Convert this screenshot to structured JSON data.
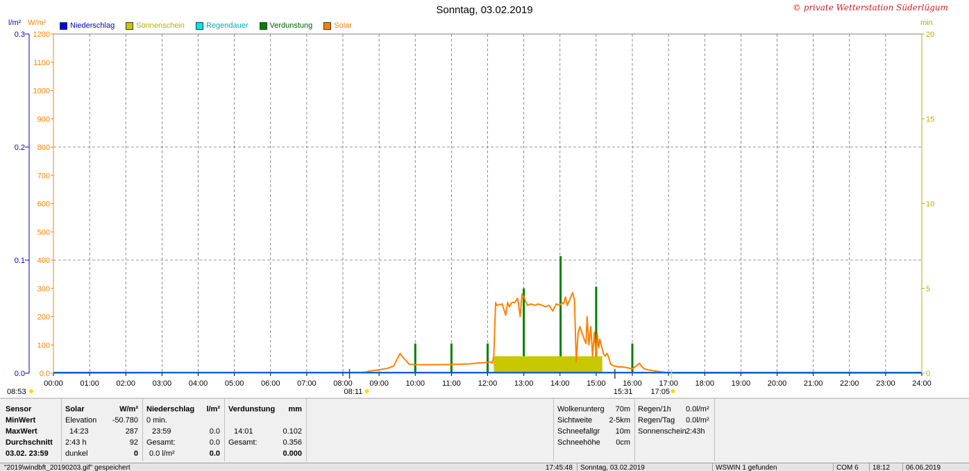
{
  "title": "Sonntag, 03.02.2019",
  "copyright": "© private Wetterstation Süderlügum",
  "units": {
    "left_rain": "l/m²",
    "left_solar": "W/m²",
    "right": "min"
  },
  "legend": [
    {
      "label": "Niederschlag",
      "color": "#0000e6",
      "text_color": "#0000c0"
    },
    {
      "label": "Sonnenschein",
      "color": "#c8c800",
      "text_color": "#b0b000"
    },
    {
      "label": "Regendauer",
      "color": "#00e6e6",
      "text_color": "#00b0b0"
    },
    {
      "label": "Verdunstung",
      "color": "#008000",
      "text_color": "#006000"
    },
    {
      "label": "Solar",
      "color": "#ff8000",
      "text_color": "#ff8000"
    }
  ],
  "chart_data": {
    "type": "line",
    "title": "Sonntag, 03.02.2019",
    "x_ticks": [
      "00:00",
      "01:00",
      "02:00",
      "03:00",
      "04:00",
      "05:00",
      "06:00",
      "07:00",
      "08:00",
      "09:00",
      "10:00",
      "11:00",
      "12:00",
      "13:00",
      "14:00",
      "15:00",
      "16:00",
      "17:00",
      "18:00",
      "19:00",
      "20:00",
      "21:00",
      "22:00",
      "23:00",
      "24:00"
    ],
    "axes": {
      "rain": {
        "unit": "l/m²",
        "range": [
          0,
          0.3
        ],
        "ticks": [
          "0.0",
          "0.1",
          "0.2",
          "0.3"
        ]
      },
      "solar": {
        "unit": "W/m²",
        "range": [
          0,
          1200
        ],
        "ticks": [
          "0.0",
          "100",
          "200",
          "300",
          "400",
          "500",
          "600",
          "700",
          "800",
          "900",
          "1000",
          "1100",
          "1200"
        ]
      },
      "minutes": {
        "unit": "min",
        "range": [
          0,
          20
        ],
        "ticks": [
          "0",
          "5",
          "10",
          "15",
          "20"
        ]
      }
    },
    "grid": true,
    "legend_position": "top-left",
    "series": [
      {
        "name": "Solar",
        "axis": "solar",
        "color": "#ff8000",
        "x_hours": [
          0,
          8.6,
          8.75,
          9.0,
          9.25,
          9.4,
          9.5,
          9.58,
          9.67,
          9.83,
          10.0,
          10.5,
          11.0,
          11.5,
          11.75,
          12.0,
          12.08,
          12.13,
          12.17,
          12.22,
          12.25,
          12.4,
          12.5,
          12.55,
          12.6,
          12.67,
          12.75,
          12.83,
          12.9,
          12.95,
          13.0,
          13.05,
          13.1,
          13.2,
          13.3,
          13.4,
          13.5,
          13.6,
          13.7,
          13.8,
          13.9,
          14.0,
          14.05,
          14.1,
          14.15,
          14.2,
          14.25,
          14.3,
          14.35,
          14.4,
          14.45,
          14.5,
          14.55,
          14.6,
          14.67,
          14.72,
          14.75,
          14.8,
          14.85,
          14.9,
          14.95,
          15.0,
          15.03,
          15.07,
          15.1,
          15.15,
          15.2,
          15.25,
          15.3,
          15.35,
          15.4,
          15.45,
          15.5,
          15.55,
          15.6,
          15.67,
          15.75,
          15.83,
          16.0,
          16.1,
          16.2,
          16.25,
          16.33,
          16.5,
          16.67,
          16.83,
          17.0,
          17.08,
          24
        ],
        "y": [
          0,
          3,
          8,
          12,
          18,
          25,
          50,
          70,
          55,
          32,
          30,
          30,
          31,
          33,
          36,
          38,
          40,
          35,
          60,
          250,
          240,
          245,
          205,
          250,
          235,
          250,
          250,
          265,
          200,
          280,
          270,
          255,
          240,
          245,
          240,
          245,
          240,
          235,
          240,
          220,
          245,
          240,
          250,
          245,
          270,
          240,
          255,
          270,
          285,
          260,
          40,
          140,
          165,
          145,
          120,
          105,
          200,
          100,
          165,
          60,
          145,
          60,
          140,
          90,
          120,
          95,
          70,
          60,
          70,
          55,
          32,
          28,
          25,
          25,
          22,
          22,
          22,
          20,
          15,
          25,
          35,
          25,
          15,
          10,
          7,
          4,
          2,
          0,
          0
        ]
      },
      {
        "name": "Verdunstung",
        "axis": "minutes",
        "color": "#008000",
        "bars": [
          {
            "x": "10:00",
            "v": 1.75
          },
          {
            "x": "11:00",
            "v": 1.75
          },
          {
            "x": "12:00",
            "v": 1.75
          },
          {
            "x": "13:00",
            "v": 5.0
          },
          {
            "x": "14:01",
            "v": 6.9
          },
          {
            "x": "15:00",
            "v": 5.1
          },
          {
            "x": "16:00",
            "v": 1.75
          }
        ]
      },
      {
        "name": "Sonnenschein",
        "axis": "minutes",
        "color": "#c8c800",
        "bars": [
          {
            "x_start": 12.17,
            "x_end": 15.17,
            "v": 1.0
          }
        ]
      }
    ],
    "markers": {
      "left_elevation_time": "08:53",
      "sunrise": "08:11",
      "sunset": "17:05",
      "cross": "15:31"
    }
  },
  "info": {
    "solar": {
      "header_sensor": "Sensor",
      "header_solar": "Solar",
      "header_unit": "W/m²",
      "rows": [
        {
          "label": "MinWert",
          "c1": "Elevation",
          "c2": "-50.780"
        },
        {
          "label": "MaxWert",
          "c1": "14:23",
          "c2": "287"
        },
        {
          "label": "Durchschnitt",
          "c1": "2:43 h",
          "c2": "92"
        },
        {
          "label": "03.02. 23:59",
          "c1": "dunkel",
          "c2": "0"
        }
      ]
    },
    "rain": {
      "header": "Niederschlag",
      "unit": "l/m²",
      "rows": [
        {
          "c1": "0 min.",
          "c2": ""
        },
        {
          "c1": "23:59",
          "c2": "0.0"
        },
        {
          "c1": "Gesamt:",
          "c2": "0.0"
        },
        {
          "c1": "0.0 l/m²",
          "c2": "0.0"
        }
      ]
    },
    "evap": {
      "header": "Verdunstung",
      "unit": "mm",
      "rows": [
        {
          "c1": "",
          "c2": ""
        },
        {
          "c1": "14:01",
          "c2": "0.102"
        },
        {
          "c1": "Gesamt:",
          "c2": "0.356"
        },
        {
          "c1": "",
          "c2": "0.000"
        }
      ]
    },
    "weather": [
      {
        "label": "Wolkenunterg",
        "value": "70m"
      },
      {
        "label": "Sichtweite",
        "value": "2-5km"
      },
      {
        "label": "Schneefallgr",
        "value": "10m"
      },
      {
        "label": "Schneehöhe",
        "value": "0cm"
      }
    ],
    "rainstats": [
      {
        "label": "Regen/1h",
        "value": "0.0l/m²"
      },
      {
        "label": "Regen/Tag",
        "value": "0.0l/m²"
      },
      {
        "label": "Sonnenschein",
        "value": "2:43h"
      }
    ]
  },
  "status": [
    "\"2019\\windbft_20190203.gif\" gespeichert",
    "17:45:48",
    "Sonntag, 03.02.2019",
    "WSWIN 1 gefunden",
    "COM 6",
    "18:12",
    "06.06.2019"
  ]
}
